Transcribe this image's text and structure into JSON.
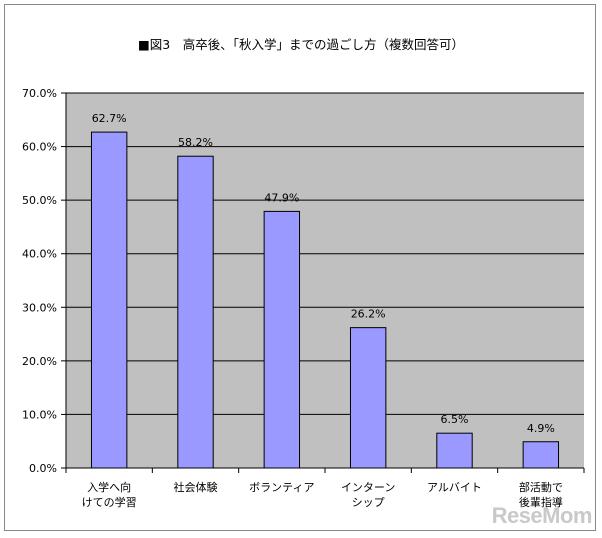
{
  "chart_data": {
    "type": "bar",
    "title": "■図3　高卒後、「秋入学」までの過ごし方（複数回答可）",
    "categories": [
      [
        "入学へ向",
        "けての学習"
      ],
      [
        "社会体験"
      ],
      [
        "ボランティア"
      ],
      [
        "インターン",
        "シップ"
      ],
      [
        "アルバイト"
      ],
      [
        "部活動で",
        "後輩指導"
      ]
    ],
    "values": [
      62.7,
      58.2,
      47.9,
      26.2,
      6.5,
      4.9
    ],
    "value_labels": [
      "62.7%",
      "58.2%",
      "47.9%",
      "26.2%",
      "6.5%",
      "4.9%"
    ],
    "ylim": [
      0,
      70
    ],
    "yticks": [
      "0.0%",
      "10.0%",
      "20.0%",
      "30.0%",
      "40.0%",
      "50.0%",
      "60.0%",
      "70.0%"
    ],
    "grid": true,
    "colors": {
      "bar": "#9999ff",
      "bar_stroke": "#000000",
      "plot_bg": "#c0c0c0",
      "grid": "#000000"
    }
  },
  "watermark": "ReseMom"
}
